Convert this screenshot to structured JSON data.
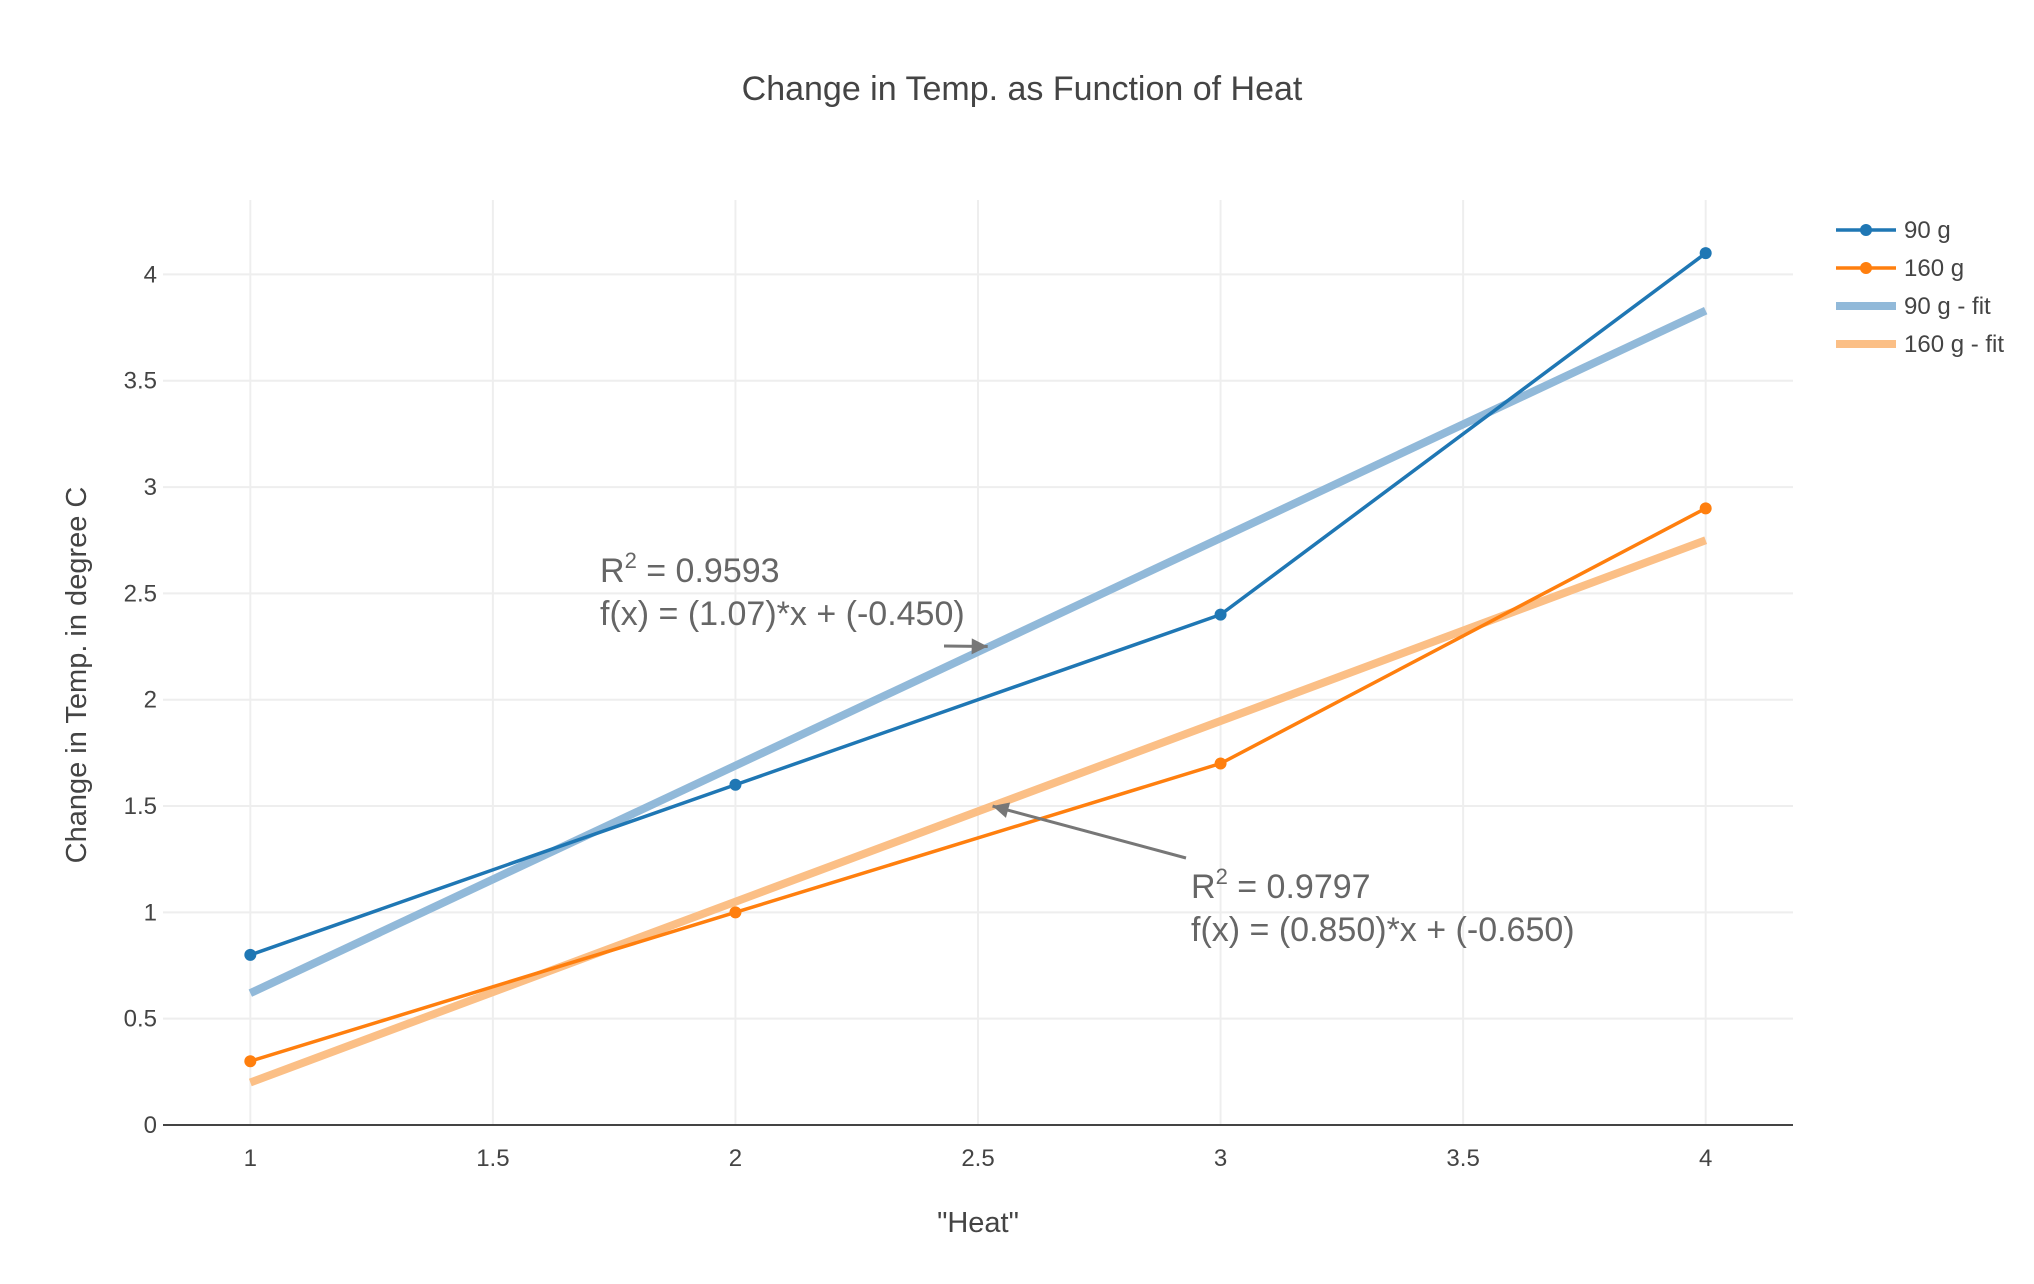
{
  "chart_data": {
    "type": "line",
    "title": "Change in Temp. as  Function of Heat",
    "xlabel": "\"Heat\"",
    "ylabel": "Change in Temp. in degree C",
    "xlim": [
      0.82,
      4.18
    ],
    "ylim": [
      0,
      4.35
    ],
    "xticks": [
      1,
      1.5,
      2,
      2.5,
      3,
      3.5,
      4
    ],
    "xtick_labels": [
      "1",
      "1.5",
      "2",
      "2.5",
      "3",
      "3.5",
      "4"
    ],
    "yticks": [
      0,
      0.5,
      1,
      1.5,
      2,
      2.5,
      3,
      3.5,
      4
    ],
    "ytick_labels": [
      "0",
      "0.5",
      "1",
      "1.5",
      "2",
      "2.5",
      "3",
      "3.5",
      "4"
    ],
    "grid": true,
    "legend_position": "top-right",
    "series": [
      {
        "name": "90 g",
        "mode": "lines+markers",
        "color": "#1f77b4",
        "x": [
          1,
          2,
          3,
          4
        ],
        "y": [
          0.8,
          1.6,
          2.4,
          4.1
        ]
      },
      {
        "name": "160 g",
        "mode": "lines+markers",
        "color": "#ff7f0e",
        "x": [
          1,
          2,
          3,
          4
        ],
        "y": [
          0.3,
          1.0,
          1.7,
          2.9
        ]
      },
      {
        "name": "90 g - fit",
        "mode": "lines",
        "color": "#91b9d9",
        "x": [
          1,
          4
        ],
        "y": [
          0.62,
          3.83
        ]
      },
      {
        "name": "160 g - fit",
        "mode": "lines",
        "color": "#fbbf86",
        "x": [
          1,
          4
        ],
        "y": [
          0.2,
          2.75
        ]
      }
    ],
    "annotations": [
      {
        "r2_label": "R",
        "r2_sup": "2",
        "r2_value": " = 0.9593",
        "equation": "f(x) = (1.07)*x + (-0.450)",
        "target": {
          "x": 2.52,
          "y": 2.25
        }
      },
      {
        "r2_label": "R",
        "r2_sup": "2",
        "r2_value": " = 0.9797",
        "equation": "f(x) = (0.850)*x + (-0.650)",
        "target": {
          "x": 2.53,
          "y": 1.5
        }
      }
    ]
  }
}
